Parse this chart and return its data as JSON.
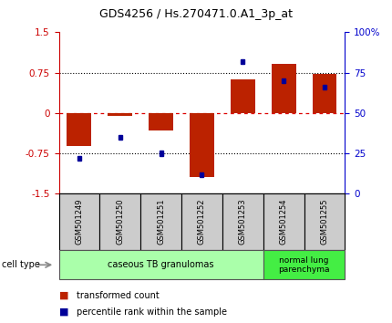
{
  "title": "GDS4256 / Hs.270471.0.A1_3p_at",
  "samples": [
    "GSM501249",
    "GSM501250",
    "GSM501251",
    "GSM501252",
    "GSM501253",
    "GSM501254",
    "GSM501255"
  ],
  "transformed_count": [
    -0.62,
    -0.05,
    -0.32,
    -1.18,
    0.63,
    0.92,
    0.73
  ],
  "percentile_rank": [
    22,
    35,
    25,
    12,
    82,
    70,
    66
  ],
  "ylim_left": [
    -1.5,
    1.5
  ],
  "yticks_left": [
    -1.5,
    -0.75,
    0,
    0.75,
    1.5
  ],
  "yticks_right": [
    0,
    25,
    50,
    75,
    100
  ],
  "bar_color": "#BB2200",
  "square_color": "#000099",
  "zero_line_color": "#DD0000",
  "dotted_line_color": "#000000",
  "group1_label": "caseous TB granulomas",
  "group2_label": "normal lung\nparenchyma",
  "group1_indices": [
    0,
    1,
    2,
    3,
    4
  ],
  "group2_indices": [
    5,
    6
  ],
  "group1_color": "#AAFFAA",
  "group2_color": "#44EE44",
  "cell_type_label": "cell type",
  "legend1": "transformed count",
  "legend2": "percentile rank within the sample",
  "bar_width": 0.6,
  "sample_box_color": "#CCCCCC",
  "left_axis_color": "#CC0000",
  "right_axis_color": "#0000CC"
}
